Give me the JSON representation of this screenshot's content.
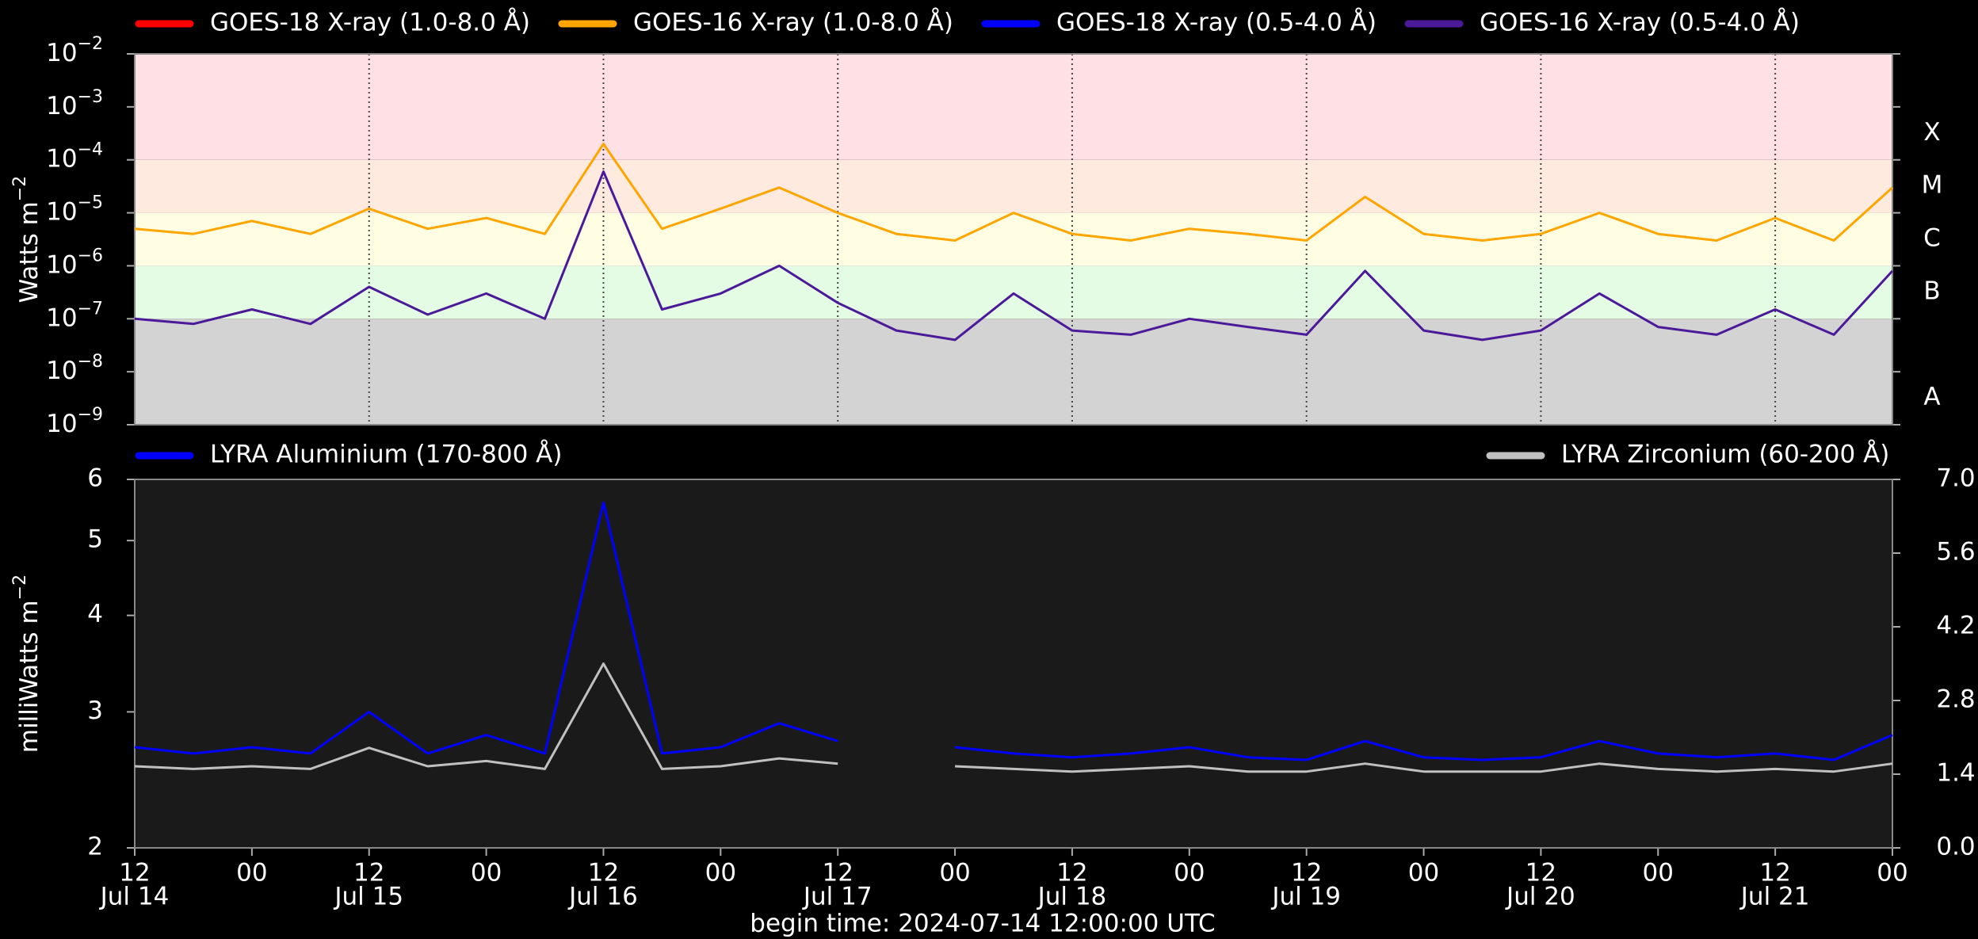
{
  "chart_data": [
    {
      "type": "line",
      "ylabel": "Watts m^-2",
      "log": true,
      "legend": "top",
      "ylim": [
        1e-09,
        0.01
      ],
      "yticks": [
        {
          "value": 1e-09,
          "label": "10^-9"
        },
        {
          "value": 1e-08,
          "label": "10^-8"
        },
        {
          "value": 1e-07,
          "label": "10^-7"
        },
        {
          "value": 1e-06,
          "label": "10^-6"
        },
        {
          "value": 1e-05,
          "label": "10^-5"
        },
        {
          "value": 0.0001,
          "label": "10^-4"
        },
        {
          "value": 0.001,
          "label": "10^-3"
        },
        {
          "value": 0.01,
          "label": "10^-2"
        }
      ],
      "xlim": [
        "2024-07-14T12:00Z",
        "2024-07-22T00:00Z"
      ],
      "xticks": [
        "2024-07-14T12:00Z",
        "2024-07-15T12:00Z",
        "2024-07-16T12:00Z",
        "2024-07-17T12:00Z",
        "2024-07-18T12:00Z",
        "2024-07-19T12:00Z",
        "2024-07-20T12:00Z",
        "2024-07-21T12:00Z"
      ],
      "grid": true,
      "flare_classes": [
        {
          "label": "A",
          "from": 1e-09,
          "to": 1e-07,
          "color": "#d3d3d3"
        },
        {
          "label": "B",
          "from": 1e-07,
          "to": 1e-06,
          "color": "#e4fbe4"
        },
        {
          "label": "C",
          "from": 1e-06,
          "to": 1e-05,
          "color": "#fffde2"
        },
        {
          "label": "M",
          "from": 1e-05,
          "to": 0.0001,
          "color": "#ffeadf"
        },
        {
          "label": "X",
          "from": 0.0001,
          "to": 0.01,
          "color": "#ffe0e5"
        }
      ],
      "x": [
        "2024-07-14T12:00Z",
        "2024-07-14T18:00Z",
        "2024-07-15T00:00Z",
        "2024-07-15T06:00Z",
        "2024-07-15T12:00Z",
        "2024-07-15T18:00Z",
        "2024-07-16T00:00Z",
        "2024-07-16T06:00Z",
        "2024-07-16T12:00Z",
        "2024-07-16T18:00Z",
        "2024-07-17T00:00Z",
        "2024-07-17T06:00Z",
        "2024-07-17T12:00Z",
        "2024-07-17T18:00Z",
        "2024-07-18T00:00Z",
        "2024-07-18T06:00Z",
        "2024-07-18T12:00Z",
        "2024-07-18T18:00Z",
        "2024-07-19T00:00Z",
        "2024-07-19T06:00Z",
        "2024-07-19T12:00Z",
        "2024-07-19T18:00Z",
        "2024-07-20T00:00Z",
        "2024-07-20T06:00Z",
        "2024-07-20T12:00Z",
        "2024-07-20T18:00Z",
        "2024-07-21T00:00Z",
        "2024-07-21T06:00Z",
        "2024-07-21T12:00Z",
        "2024-07-21T18:00Z",
        "2024-07-22T00:00Z"
      ],
      "series": [
        {
          "name": "GOES-18 X-ray (1.0-8.0 Å)",
          "color": "#ff0000",
          "values": [
            null,
            null,
            null,
            null,
            null,
            null,
            null,
            null,
            null,
            null,
            null,
            null,
            null,
            null,
            null,
            null,
            null,
            null,
            null,
            null,
            null,
            null,
            null,
            null,
            null,
            null,
            null,
            null,
            null,
            null,
            null
          ]
        },
        {
          "name": "GOES-16 X-ray (1.0-8.0 Å)",
          "color": "#ffa500",
          "values": [
            5e-06,
            4e-06,
            7e-06,
            4e-06,
            1.2e-05,
            5e-06,
            8e-06,
            4e-06,
            0.0002,
            5e-06,
            1.2e-05,
            3e-05,
            1e-05,
            4e-06,
            3e-06,
            1e-05,
            4e-06,
            3e-06,
            5e-06,
            4e-06,
            3e-06,
            2e-05,
            4e-06,
            3e-06,
            4e-06,
            1e-05,
            4e-06,
            3e-06,
            8e-06,
            3e-06,
            3e-05
          ]
        },
        {
          "name": "GOES-18 X-ray (0.5-4.0 Å)",
          "color": "#0000ff",
          "values": [
            null,
            null,
            null,
            null,
            null,
            null,
            null,
            null,
            null,
            null,
            null,
            null,
            null,
            null,
            null,
            null,
            null,
            null,
            null,
            null,
            null,
            null,
            null,
            null,
            null,
            null,
            null,
            null,
            null,
            null,
            null
          ]
        },
        {
          "name": "GOES-16 X-ray (0.5-4.0 Å)",
          "color": "#4b1a99",
          "values": [
            1e-07,
            8e-08,
            1.5e-07,
            8e-08,
            4e-07,
            1.2e-07,
            3e-07,
            1e-07,
            6e-05,
            1.5e-07,
            3e-07,
            1e-06,
            2e-07,
            6e-08,
            4e-08,
            3e-07,
            6e-08,
            5e-08,
            1e-07,
            7e-08,
            5e-08,
            8e-07,
            6e-08,
            4e-08,
            6e-08,
            3e-07,
            7e-08,
            5e-08,
            1.5e-07,
            5e-08,
            8e-07
          ]
        }
      ]
    },
    {
      "type": "line",
      "ylabel": "milliWatts m^-2",
      "log": true,
      "ylim": [
        2,
        6
      ],
      "yticks": [
        2,
        3,
        4,
        5,
        6
      ],
      "y2lim": [
        0,
        7
      ],
      "y2ticks": [
        {
          "value": 0,
          "label": "0.0"
        },
        {
          "value": 1.4,
          "label": "1.4"
        },
        {
          "value": 2.8,
          "label": "2.8"
        },
        {
          "value": 4.2,
          "label": "4.2"
        },
        {
          "value": 5.6,
          "label": "5.6"
        },
        {
          "value": 7,
          "label": "7.0"
        }
      ],
      "xlim": [
        "2024-07-14T12:00Z",
        "2024-07-22T00:00Z"
      ],
      "xticks": [
        {
          "value": "2024-07-14T12:00Z",
          "label": "12"
        },
        {
          "value": "2024-07-15T00:00Z",
          "label": "00"
        },
        {
          "value": "2024-07-15T12:00Z",
          "label": "12"
        },
        {
          "value": "2024-07-16T00:00Z",
          "label": "00"
        },
        {
          "value": "2024-07-16T12:00Z",
          "label": "12"
        },
        {
          "value": "2024-07-17T00:00Z",
          "label": "00"
        },
        {
          "value": "2024-07-17T12:00Z",
          "label": "12"
        },
        {
          "value": "2024-07-18T00:00Z",
          "label": "00"
        },
        {
          "value": "2024-07-18T12:00Z",
          "label": "12"
        },
        {
          "value": "2024-07-19T00:00Z",
          "label": "00"
        },
        {
          "value": "2024-07-19T12:00Z",
          "label": "12"
        },
        {
          "value": "2024-07-20T00:00Z",
          "label": "00"
        },
        {
          "value": "2024-07-20T12:00Z",
          "label": "12"
        },
        {
          "value": "2024-07-21T00:00Z",
          "label": "00"
        },
        {
          "value": "2024-07-21T12:00Z",
          "label": "12"
        },
        {
          "value": "2024-07-22T00:00Z",
          "label": "00"
        }
      ],
      "xday_labels": [
        {
          "value": "2024-07-14T12:00Z",
          "label": "Jul 14"
        },
        {
          "value": "2024-07-15T12:00Z",
          "label": "Jul 15"
        },
        {
          "value": "2024-07-16T12:00Z",
          "label": "Jul 16"
        },
        {
          "value": "2024-07-17T12:00Z",
          "label": "Jul 17"
        },
        {
          "value": "2024-07-18T12:00Z",
          "label": "Jul 18"
        },
        {
          "value": "2024-07-19T12:00Z",
          "label": "Jul 19"
        },
        {
          "value": "2024-07-20T12:00Z",
          "label": "Jul 20"
        },
        {
          "value": "2024-07-21T12:00Z",
          "label": "Jul 21"
        }
      ],
      "x": [
        "2024-07-14T12:00Z",
        "2024-07-14T18:00Z",
        "2024-07-15T00:00Z",
        "2024-07-15T06:00Z",
        "2024-07-15T12:00Z",
        "2024-07-15T18:00Z",
        "2024-07-16T00:00Z",
        "2024-07-16T06:00Z",
        "2024-07-16T12:00Z",
        "2024-07-16T18:00Z",
        "2024-07-17T00:00Z",
        "2024-07-17T06:00Z",
        "2024-07-17T12:00Z",
        "2024-07-17T18:00Z",
        "2024-07-18T00:00Z",
        "2024-07-18T06:00Z",
        "2024-07-18T12:00Z",
        "2024-07-18T18:00Z",
        "2024-07-19T00:00Z",
        "2024-07-19T06:00Z",
        "2024-07-19T12:00Z",
        "2024-07-19T18:00Z",
        "2024-07-20T00:00Z",
        "2024-07-20T06:00Z",
        "2024-07-20T12:00Z",
        "2024-07-20T18:00Z",
        "2024-07-21T00:00Z",
        "2024-07-21T06:00Z",
        "2024-07-21T12:00Z",
        "2024-07-21T18:00Z",
        "2024-07-22T00:00Z"
      ],
      "series": [
        {
          "name": "LYRA Aluminium (170-800 Å)",
          "color": "#0000ff",
          "legend": "left",
          "values": [
            2.7,
            2.65,
            2.7,
            2.65,
            3.0,
            2.65,
            2.8,
            2.65,
            5.6,
            2.65,
            2.7,
            2.9,
            2.75,
            null,
            2.7,
            2.65,
            2.62,
            2.65,
            2.7,
            2.62,
            2.6,
            2.75,
            2.62,
            2.6,
            2.62,
            2.75,
            2.65,
            2.62,
            2.65,
            2.6,
            2.8
          ]
        },
        {
          "name": "LYRA Zirconium (60-200 Å)",
          "color": "#c0c0c0",
          "legend": "right",
          "axis": "y2",
          "values": [
            1.55,
            1.5,
            1.55,
            1.5,
            1.9,
            1.55,
            1.65,
            1.5,
            3.5,
            1.5,
            1.55,
            1.7,
            1.6,
            null,
            1.55,
            1.5,
            1.45,
            1.5,
            1.55,
            1.45,
            1.45,
            1.6,
            1.45,
            1.45,
            1.45,
            1.6,
            1.5,
            1.45,
            1.5,
            1.45,
            1.6
          ]
        }
      ]
    }
  ],
  "footer": "begin time: 2024-07-14 12:00:00 UTC"
}
